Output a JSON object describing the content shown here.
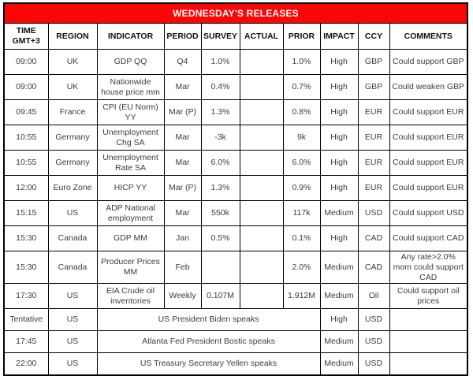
{
  "title": "WEDNESDAY'S RELEASES",
  "colors": {
    "title_bg": "#fb0505",
    "title_text": "#ffffff",
    "border": "#000000",
    "body_text": "#3d3d3d"
  },
  "columns": {
    "time_line1": "TIME",
    "time_line2": "GMT+3",
    "region": "REGION",
    "indicator": "INDICATOR",
    "period": "PERIOD",
    "survey": "SURVEY",
    "actual": "ACTUAL",
    "prior": "PRIOR",
    "impact": "IMPACT",
    "ccy": "CCY",
    "comments": "COMMENTS"
  },
  "rows": [
    {
      "time": "09:00",
      "region": "UK",
      "indicator": "GDP QQ",
      "period": "Q4",
      "survey": "1.0%",
      "actual": "",
      "prior": "1.0%",
      "impact": "High",
      "ccy": "GBP",
      "comment": "Could support GBP"
    },
    {
      "time": "09:00",
      "region": "UK",
      "indicator": "Nationwide house price mm",
      "period": "Mar",
      "survey": "0.4%",
      "actual": "",
      "prior": "0.7%",
      "impact": "High",
      "ccy": "GBP",
      "comment": "Could weaken GBP"
    },
    {
      "time": "09:45",
      "region": "France",
      "indicator": "CPI (EU Norm) YY",
      "period": "Mar (P)",
      "survey": "1.3%",
      "actual": "",
      "prior": "0.8%",
      "impact": "High",
      "ccy": "EUR",
      "comment": "Could support EUR"
    },
    {
      "time": "10:55",
      "region": "Germany",
      "indicator": "Unemployment Chg SA",
      "period": "Mar",
      "survey": "-3k",
      "actual": "",
      "prior": "9k",
      "impact": "High",
      "ccy": "EUR",
      "comment": "Could support EUR"
    },
    {
      "time": "10:55",
      "region": "Germany",
      "indicator": "Unemployment Rate SA",
      "period": "Mar",
      "survey": "6.0%",
      "actual": "",
      "prior": "6.0%",
      "impact": "High",
      "ccy": "EUR",
      "comment": "Could support EUR"
    },
    {
      "time": "12:00",
      "region": "Euro Zone",
      "indicator": "HICP YY",
      "period": "Mar (P)",
      "survey": "1.3%",
      "actual": "",
      "prior": "0.9%",
      "impact": "High",
      "ccy": "EUR",
      "comment": "Could support EUR"
    },
    {
      "time": "15:15",
      "region": "US",
      "indicator": "ADP National employment",
      "period": "Mar",
      "survey": "550k",
      "actual": "",
      "prior": "117k",
      "impact": "Medium",
      "ccy": "USD",
      "comment": "Could support USD"
    },
    {
      "time": "15:30",
      "region": "Canada",
      "indicator": "GDP MM",
      "period": "Jan",
      "survey": "0.5%",
      "actual": "",
      "prior": "0.1%",
      "impact": "High",
      "ccy": "CAD",
      "comment": "Could support CAD"
    },
    {
      "time": "15:30",
      "region": "Canada",
      "indicator": "Producer Prices MM",
      "period": "Feb",
      "survey": "",
      "actual": "",
      "prior": "2.0%",
      "impact": "Medium",
      "ccy": "CAD",
      "comment": "Any rate>2.0% mom could support CAD"
    },
    {
      "time": "17:30",
      "region": "US",
      "indicator": "EIA Crude oil inventories",
      "period": "Weekly",
      "survey": "0.107M",
      "actual": "",
      "prior": "1.912M",
      "impact": "Medium",
      "ccy": "Oil",
      "comment": "Could support oil prices"
    }
  ],
  "speeches": [
    {
      "time": "Tentative",
      "region": "US",
      "event": "US President Biden speaks",
      "impact": "High",
      "ccy": "USD",
      "comment": ""
    },
    {
      "time": "17:45",
      "region": "US",
      "event": "Atlanta Fed President Bostic speaks",
      "impact": "Medium",
      "ccy": "USD",
      "comment": ""
    },
    {
      "time": "22:00",
      "region": "US",
      "event": "US Treasury Secretary Yellen speaks",
      "impact": "Medium",
      "ccy": "USD",
      "comment": ""
    }
  ]
}
